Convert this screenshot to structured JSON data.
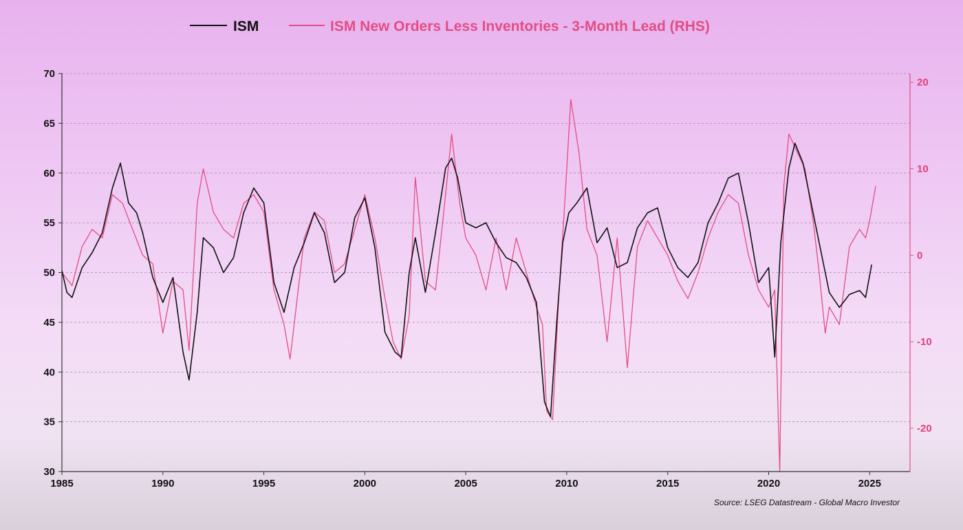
{
  "chart_data": {
    "type": "line",
    "legend_position": "top",
    "grid": true,
    "source": "Source: LSEG Datastream - Global Macro Investor",
    "x_ticks": [
      "1985",
      "1990",
      "1995",
      "2000",
      "2005",
      "2010",
      "2015",
      "2020",
      "2025"
    ],
    "xlim": [
      1985.0,
      2027.0
    ],
    "y_left": {
      "ylim": [
        30,
        70
      ],
      "ticks": [
        "30",
        "35",
        "40",
        "45",
        "50",
        "55",
        "60",
        "65",
        "70"
      ]
    },
    "y_right": {
      "ylim": [
        -25,
        21
      ],
      "ticks": [
        "-20",
        "-10",
        "0",
        "10",
        "20"
      ],
      "color": "#e34d84"
    },
    "series": [
      {
        "name": "ISM",
        "axis": "left",
        "color": "#111111",
        "x": [
          1985.0,
          1985.25,
          1985.5,
          1986.0,
          1986.5,
          1987.0,
          1987.5,
          1987.9,
          1988.3,
          1988.7,
          1989.0,
          1989.5,
          1990.0,
          1990.5,
          1991.0,
          1991.3,
          1991.7,
          1992.0,
          1992.5,
          1993.0,
          1993.5,
          1994.0,
          1994.5,
          1995.0,
          1995.5,
          1996.0,
          1996.5,
          1997.0,
          1997.5,
          1998.0,
          1998.5,
          1999.0,
          1999.5,
          2000.0,
          2000.5,
          2001.0,
          2001.5,
          2001.8,
          2002.2,
          2002.5,
          2003.0,
          2003.5,
          2004.0,
          2004.3,
          2004.6,
          2005.0,
          2005.5,
          2006.0,
          2006.5,
          2007.0,
          2007.5,
          2008.0,
          2008.5,
          2008.9,
          2009.2,
          2009.5,
          2009.8,
          2010.1,
          2010.5,
          2011.0,
          2011.5,
          2012.0,
          2012.5,
          2013.0,
          2013.5,
          2014.0,
          2014.5,
          2015.0,
          2015.5,
          2016.0,
          2016.5,
          2017.0,
          2017.5,
          2018.0,
          2018.5,
          2019.0,
          2019.5,
          2020.0,
          2020.3,
          2020.6,
          2021.0,
          2021.3,
          2021.7,
          2022.0,
          2022.5,
          2023.0,
          2023.5,
          2024.0,
          2024.5,
          2024.8,
          2025.1
        ],
        "values": [
          50.2,
          48.0,
          47.5,
          50.5,
          52.0,
          54.0,
          58.5,
          61.0,
          57.0,
          56.0,
          54.0,
          49.5,
          47.0,
          49.5,
          42.0,
          39.2,
          46.0,
          53.5,
          52.5,
          50.0,
          51.5,
          56.0,
          58.5,
          57.0,
          49.0,
          46.0,
          50.5,
          53.0,
          56.0,
          54.0,
          49.0,
          50.0,
          55.5,
          57.5,
          52.5,
          44.0,
          42.0,
          41.5,
          50.0,
          53.5,
          48.0,
          54.0,
          60.5,
          61.5,
          59.5,
          55.0,
          54.5,
          55.0,
          53.0,
          51.5,
          51.0,
          49.5,
          47.0,
          37.0,
          35.5,
          45.0,
          53.0,
          56.0,
          57.0,
          58.5,
          53.0,
          54.5,
          50.5,
          51.0,
          54.5,
          56.0,
          56.5,
          52.5,
          50.5,
          49.5,
          51.0,
          55.0,
          57.0,
          59.5,
          60.0,
          55.0,
          49.0,
          50.5,
          41.5,
          53.0,
          60.5,
          63.0,
          61.0,
          58.0,
          53.0,
          48.0,
          46.5,
          47.8,
          48.2,
          47.5,
          50.8
        ]
      },
      {
        "name": "ISM New Orders Less Inventories - 3-Month Lead (RHS)",
        "axis": "right",
        "color": "#e34d84",
        "x": [
          1985.0,
          1985.5,
          1986.0,
          1986.5,
          1987.0,
          1987.5,
          1988.0,
          1988.5,
          1989.0,
          1989.5,
          1990.0,
          1990.5,
          1991.0,
          1991.3,
          1991.7,
          1992.0,
          1992.5,
          1993.0,
          1993.5,
          1994.0,
          1994.5,
          1995.0,
          1995.5,
          1996.0,
          1996.3,
          1996.7,
          1997.0,
          1997.5,
          1998.0,
          1998.5,
          1999.0,
          1999.5,
          2000.0,
          2000.5,
          2001.0,
          2001.4,
          2001.8,
          2002.2,
          2002.5,
          2003.0,
          2003.5,
          2004.0,
          2004.3,
          2004.7,
          2005.0,
          2005.5,
          2006.0,
          2006.5,
          2007.0,
          2007.5,
          2008.0,
          2008.5,
          2008.8,
          2009.0,
          2009.3,
          2009.6,
          2009.9,
          2010.2,
          2010.6,
          2011.0,
          2011.5,
          2012.0,
          2012.5,
          2013.0,
          2013.5,
          2014.0,
          2014.5,
          2015.0,
          2015.5,
          2016.0,
          2016.5,
          2017.0,
          2017.5,
          2018.0,
          2018.5,
          2019.0,
          2019.5,
          2020.0,
          2020.3,
          2020.55,
          2020.75,
          2021.0,
          2021.4,
          2021.8,
          2022.2,
          2022.5,
          2022.8,
          2023.0,
          2023.5,
          2024.0,
          2024.5,
          2024.8,
          2025.0,
          2025.3
        ],
        "values": [
          -2.0,
          -3.5,
          1.0,
          3.0,
          2.0,
          7.0,
          6.0,
          3.0,
          0.0,
          -1.0,
          -9.0,
          -3.0,
          -4.0,
          -11.0,
          6.0,
          10.0,
          5.0,
          3.0,
          2.0,
          6.0,
          7.0,
          5.0,
          -4.0,
          -8.0,
          -12.0,
          -4.0,
          2.0,
          5.0,
          4.0,
          -2.0,
          -1.0,
          3.0,
          7.0,
          2.0,
          -5.0,
          -10.0,
          -12.0,
          -7.0,
          9.0,
          -3.0,
          -4.0,
          7.0,
          14.0,
          6.0,
          2.0,
          0.0,
          -4.0,
          2.0,
          -4.0,
          2.0,
          -2.0,
          -6.0,
          -8.0,
          -18.0,
          -19.0,
          -5.0,
          6.0,
          18.0,
          12.0,
          3.0,
          0.0,
          -10.0,
          2.0,
          -13.0,
          1.0,
          4.0,
          2.0,
          0.0,
          -3.0,
          -5.0,
          -2.0,
          2.0,
          5.0,
          7.0,
          6.0,
          0.0,
          -4.0,
          -6.0,
          -4.0,
          -25.0,
          8.0,
          14.0,
          12.0,
          10.0,
          4.0,
          -2.0,
          -9.0,
          -6.0,
          -8.0,
          1.0,
          3.0,
          2.0,
          4.0,
          8.0
        ]
      }
    ]
  }
}
